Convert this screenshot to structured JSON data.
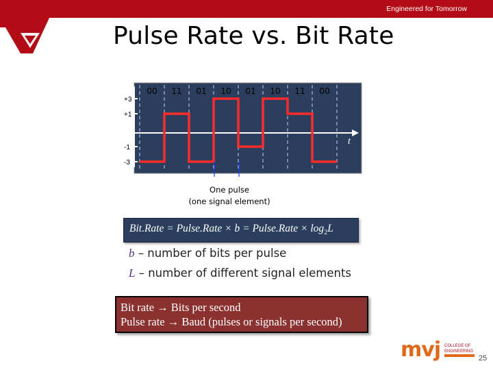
{
  "header": {
    "tagline": "Engineered for Tomorrow",
    "bar_color": "#b40c16"
  },
  "slide": {
    "title": "Pulse Rate vs. Bit Rate",
    "page_number": "25"
  },
  "diagram": {
    "levels": [
      "+3",
      "+1",
      "-1",
      "-3"
    ],
    "bit_groups": [
      "00",
      "11",
      "01",
      "10",
      "01",
      "10",
      "11",
      "00"
    ],
    "signal_levels": [
      -3,
      1,
      -3,
      3,
      -1,
      3,
      1,
      -3
    ],
    "time_label": "t",
    "pulse_caption_line1": "One pulse",
    "pulse_caption_line2": "(one signal element)",
    "plot_background": "#2c3e5d",
    "signal_color": "#ff2a2a"
  },
  "formula": {
    "text_main": "Bit.Rate = Pulse.Rate × b = Pulse.Rate × log",
    "subscript": "2",
    "text_end": "L"
  },
  "definitions": [
    {
      "symbol": "b",
      "text": " – number of bits per pulse"
    },
    {
      "symbol": "L",
      "text": " – number of different signal elements"
    }
  ],
  "rate_box": {
    "line1": "Bit rate → Bits per second",
    "line2": "Pulse rate → Baud (pulses or signals per second)",
    "background": "#8b3231"
  },
  "logo": {
    "mark": "mvj",
    "line1": "COLLEGE OF",
    "line2": "ENGINEERING"
  }
}
